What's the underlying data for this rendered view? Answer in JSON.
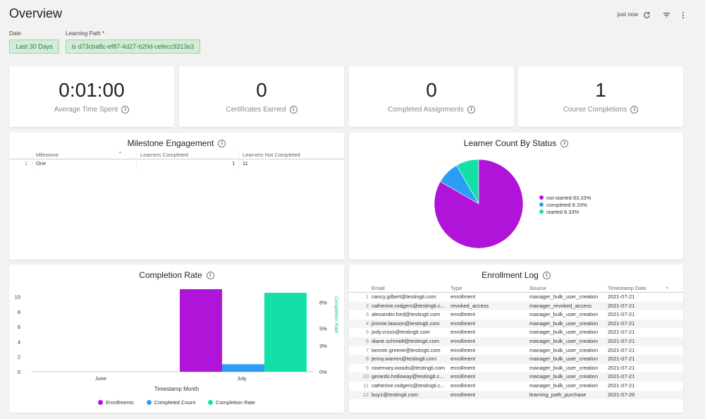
{
  "header": {
    "title": "Overview",
    "refresh_status": "just now",
    "icons": [
      "refresh-icon",
      "filter-icon",
      "more-vertical-icon"
    ]
  },
  "filters": {
    "date": {
      "label": "Date",
      "value": "Last 30 Days"
    },
    "learning_path": {
      "label": "Learning Path *",
      "value": "is d73cba8c-ef87-4d27-b20d-cefecc9313e3"
    }
  },
  "kpis": [
    {
      "value": "0:01:00",
      "label": "Average Time Spent"
    },
    {
      "value": "0",
      "label": "Certificates Earned"
    },
    {
      "value": "0",
      "label": "Completed Assignments"
    },
    {
      "value": "1",
      "label": "Course Completions"
    }
  ],
  "milestone": {
    "title": "Milestone Engagement",
    "columns": [
      "Milestone",
      "Learners Completed",
      "Learners Not Completed"
    ],
    "rows": [
      {
        "index": "1",
        "milestone": "One",
        "completed": "1",
        "not_completed": "11"
      }
    ]
  },
  "learner_status": {
    "title": "Learner Count By Status",
    "legend": [
      {
        "label": "not-started 83.33%",
        "color": "#b114d9"
      },
      {
        "label": "completed 8.33%",
        "color": "#2a9df4"
      },
      {
        "label": "started 8.33%",
        "color": "#12e0a8"
      }
    ]
  },
  "completion_rate": {
    "title": "Completion Rate",
    "xlabel": "Timestamp Month",
    "right_axis_label": "Completion Rate",
    "legend": [
      {
        "label": "Enrollments",
        "color": "#b114d9"
      },
      {
        "label": "Completed Count",
        "color": "#2a9df4"
      },
      {
        "label": "Completion Rate",
        "color": "#12e0a8"
      }
    ]
  },
  "chart_data": [
    {
      "type": "pie",
      "title": "Learner Count By Status",
      "labels": [
        "not-started",
        "completed",
        "started"
      ],
      "values": [
        83.33,
        8.33,
        8.33
      ],
      "colors": [
        "#b114d9",
        "#2a9df4",
        "#12e0a8"
      ],
      "legend": "right"
    },
    {
      "type": "bar",
      "title": "Completion Rate",
      "categories": [
        "June",
        "July"
      ],
      "xlabel": "Timestamp Month",
      "ylabel_right": "Completion Rate",
      "ylim": [
        0,
        11
      ],
      "yticks": [
        "0",
        "2",
        "4",
        "6",
        "8",
        "10"
      ],
      "y2lim": [
        0,
        9.5
      ],
      "y2ticks": [
        "0%",
        "3%",
        "5%",
        "8%"
      ],
      "series": [
        {
          "name": "Enrollments",
          "values": [
            0,
            11
          ],
          "color": "#b114d9",
          "axis": "left"
        },
        {
          "name": "Completed Count",
          "values": [
            0,
            1
          ],
          "color": "#2a9df4",
          "axis": "left"
        },
        {
          "name": "Completion Rate",
          "values": [
            0,
            9.09
          ],
          "color": "#12e0a8",
          "axis": "right"
        }
      ],
      "legend": "bottom"
    }
  ],
  "enrollment": {
    "title": "Enrollment Log",
    "columns": [
      "Email",
      "Type",
      "Source",
      "Timestamp Date"
    ],
    "rows": [
      {
        "i": "1",
        "email": "nancy.gilbert@testingti.com",
        "type": "enrollment",
        "source": "manager_bulk_user_creation",
        "date": "2021-07-21"
      },
      {
        "i": "2",
        "email": "catherine.rodgers@testingti.c...",
        "type": "revoked_access",
        "source": "manager_revoked_access",
        "date": "2021-07-21"
      },
      {
        "i": "3",
        "email": "alexander.ford@testingti.com",
        "type": "enrollment",
        "source": "manager_bulk_user_creation",
        "date": "2021-07-21"
      },
      {
        "i": "4",
        "email": "jimmie.lawson@testingti.com",
        "type": "enrollment",
        "source": "manager_bulk_user_creation",
        "date": "2021-07-21"
      },
      {
        "i": "5",
        "email": "jody.cross@testingti.com",
        "type": "enrollment",
        "source": "manager_bulk_user_creation",
        "date": "2021-07-21"
      },
      {
        "i": "6",
        "email": "diane.schmidt@testingti.com",
        "type": "enrollment",
        "source": "manager_bulk_user_creation",
        "date": "2021-07-21"
      },
      {
        "i": "7",
        "email": "bennie.greene@testingti.com",
        "type": "enrollment",
        "source": "manager_bulk_user_creation",
        "date": "2021-07-21"
      },
      {
        "i": "8",
        "email": "jenny.warren@testingti.com",
        "type": "enrollment",
        "source": "manager_bulk_user_creation",
        "date": "2021-07-21"
      },
      {
        "i": "9",
        "email": "rosemary.woods@testingti.com",
        "type": "enrollment",
        "source": "manager_bulk_user_creation",
        "date": "2021-07-21"
      },
      {
        "i": "10",
        "email": "gerardo.holloway@testingti.c...",
        "type": "enrollment",
        "source": "manager_bulk_user_creation",
        "date": "2021-07-21"
      },
      {
        "i": "11",
        "email": "catherine.rodgers@testingti.c...",
        "type": "enrollment",
        "source": "manager_bulk_user_creation",
        "date": "2021-07-21"
      },
      {
        "i": "12",
        "email": "buy1@testingti.com",
        "type": "enrollment",
        "source": "learning_path_purchase",
        "date": "2021-07-20"
      }
    ]
  }
}
